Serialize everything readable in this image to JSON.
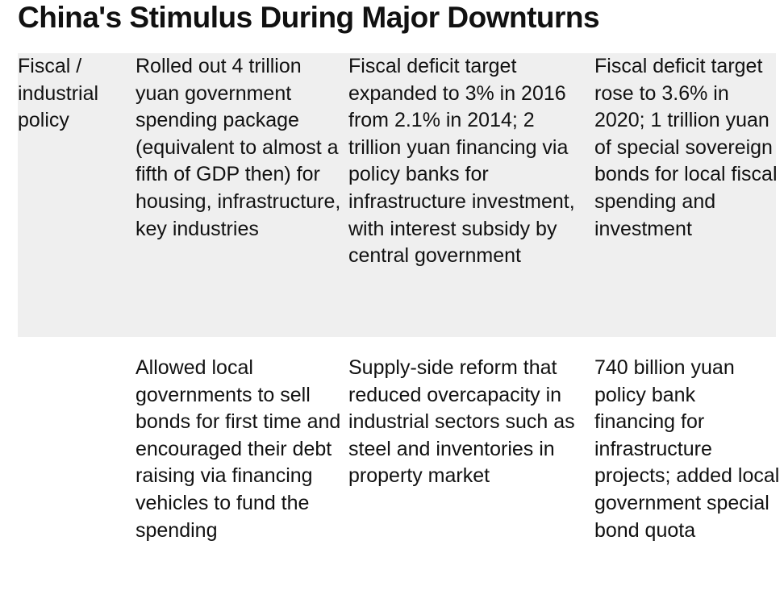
{
  "header": {
    "title": "China's Stimulus During Major Downturns"
  },
  "table": {
    "rows": [
      {
        "label": "Fiscal / industrial policy",
        "cells": [
          "Rolled out 4 trillion yuan government spending package (equivalent to almost a fifth of GDP then) for housing, infrastructure, key industries",
          "Fiscal deficit target expanded to 3% in 2016 from 2.1% in 2014; 2 trillion yuan financing via policy banks for infrastructure investment, with interest subsidy by central government",
          "Fiscal deficit target rose to 3.6% in 2020; 1 trillion yuan of special sovereign bonds for local fiscal spending and investment"
        ]
      },
      {
        "cells": [
          "Allowed local governments to sell bonds for first time and encouraged their debt raising via financing vehicles to fund the spending",
          "Supply-side reform that reduced overcapacity in industrial sectors such as steel and inventories in property market",
          "740 billion yuan policy bank financing for infrastructure projects; added local government special bond quota"
        ]
      }
    ]
  }
}
